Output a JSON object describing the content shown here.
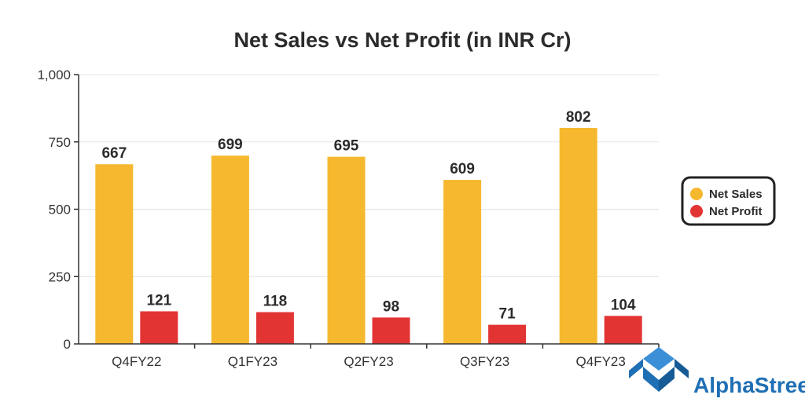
{
  "chart_data": {
    "type": "bar",
    "title": "Net Sales vs Net Profit (in INR Cr)",
    "categories": [
      "Q4FY22",
      "Q1FY23",
      "Q2FY23",
      "Q3FY23",
      "Q4FY23"
    ],
    "series": [
      {
        "name": "Net Sales",
        "values": [
          667,
          699,
          695,
          609,
          802
        ],
        "color": "#F5B82E"
      },
      {
        "name": "Net Profit",
        "values": [
          121,
          118,
          98,
          71,
          104
        ],
        "color": "#E33434"
      }
    ],
    "ylim": [
      0,
      1000
    ],
    "yticks": [
      0,
      250,
      500,
      750,
      1000
    ],
    "ytick_labels": [
      "0",
      "250",
      "500",
      "750",
      "1,000"
    ],
    "grid": true,
    "legend": "right"
  },
  "branding": {
    "name": "AlphaStreet",
    "color": "#1F6FB5",
    "icon": "alphastreet-logo-icon"
  }
}
